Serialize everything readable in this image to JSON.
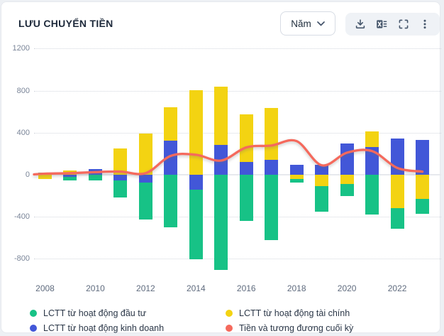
{
  "header": {
    "title": "LƯU CHUYỂN TIỀN",
    "period_selector": {
      "value": "Năm"
    },
    "toolbar_icons": [
      "download-icon",
      "excel-icon",
      "fullscreen-icon",
      "more-icon"
    ]
  },
  "chart_data": {
    "type": "bar",
    "stacked": true,
    "title": "LƯU CHUYỂN TIỀN",
    "categories": [
      2008,
      2009,
      2010,
      2011,
      2012,
      2013,
      2014,
      2015,
      2016,
      2017,
      2018,
      2019,
      2020,
      2021,
      2022,
      2023
    ],
    "x_tick_labels": [
      "2008",
      "2010",
      "2012",
      "2014",
      "2016",
      "2018",
      "2020",
      "2022"
    ],
    "y_ticks": [
      1200,
      800,
      400,
      0,
      -400,
      -800
    ],
    "ylim": [
      -1000,
      1300
    ],
    "grid": "dotted-horizontal",
    "legend_position": "bottom",
    "stack_order": [
      1,
      2,
      0
    ],
    "series": [
      {
        "name": "LCTT từ hoạt động đầu tư",
        "key": "dau-tu",
        "type": "column",
        "color": "#17C286",
        "values": [
          20,
          -32,
          -57,
          -160,
          -350,
          -503,
          -660,
          -905,
          -442,
          -624,
          -35,
          -245,
          -113,
          -381,
          -200,
          -147
        ]
      },
      {
        "name": "LCTT từ hoạt động kinh doanh",
        "key": "kinh-doanh",
        "type": "column",
        "color": "#4257D8",
        "values": [
          0,
          -22,
          57,
          -55,
          -74,
          324,
          -145,
          285,
          121,
          142,
          95,
          95,
          296,
          262,
          346,
          330
        ]
      },
      {
        "name": "LCTT từ hoạt động tài chính",
        "key": "tai-chinh",
        "type": "column",
        "color": "#F3D312",
        "values": [
          -41,
          38,
          0,
          250,
          392,
          320,
          806,
          552,
          455,
          491,
          -38,
          -105,
          -90,
          152,
          -315,
          -228
        ]
      },
      {
        "name": "Tiền và tương đương cuối kỳ",
        "key": "tien-cuoi-ky",
        "type": "line",
        "color": "#F5695C",
        "values": [
          10,
          15,
          25,
          30,
          15,
          180,
          190,
          135,
          260,
          278,
          320,
          90,
          210,
          225,
          65,
          30
        ]
      }
    ]
  }
}
